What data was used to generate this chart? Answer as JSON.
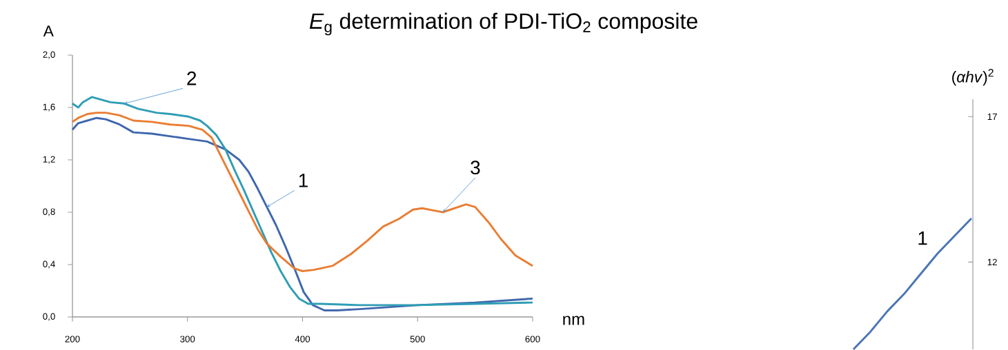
{
  "chart_data": [
    {
      "type": "line",
      "title": "*E*$_{g}$ determination of PDI-TiO$_{2}$ composite",
      "xlabel": "nm",
      "ylabel": "A",
      "xlim": [
        200,
        600
      ],
      "xticks": [
        200,
        300,
        400,
        500,
        600
      ],
      "ylim": [
        0,
        2
      ],
      "yticks": [
        {
          "value": 0,
          "label": "0,0"
        },
        {
          "value": 0.4,
          "label": "0,4"
        },
        {
          "value": 0.8,
          "label": "0,8"
        },
        {
          "value": 1.2,
          "label": "1,2"
        },
        {
          "value": 1.6,
          "label": "1,6"
        },
        {
          "value": 2.0,
          "label": "2,0"
        }
      ],
      "series": [
        {
          "name": "1",
          "color": "#3f67ad",
          "x": [
            200,
            205,
            213,
            221,
            229,
            241,
            253,
            269,
            285,
            301,
            317,
            325,
            333,
            345,
            353,
            361,
            369,
            377,
            385,
            393,
            401,
            409,
            419,
            430,
            450,
            500,
            550,
            600
          ],
          "values": [
            1.43,
            1.48,
            1.5,
            1.52,
            1.51,
            1.47,
            1.41,
            1.4,
            1.38,
            1.36,
            1.34,
            1.31,
            1.28,
            1.2,
            1.11,
            0.98,
            0.84,
            0.7,
            0.54,
            0.37,
            0.19,
            0.09,
            0.05,
            0.05,
            0.06,
            0.09,
            0.11,
            0.14
          ]
        },
        {
          "name": "2",
          "color": "#2f9db5",
          "x": [
            200,
            205,
            209,
            217,
            225,
            233,
            245,
            257,
            273,
            285,
            301,
            311,
            317,
            325,
            333,
            341,
            349,
            357,
            365,
            373,
            381,
            389,
            397,
            405,
            416,
            450,
            500,
            550,
            600
          ],
          "values": [
            1.63,
            1.6,
            1.64,
            1.68,
            1.66,
            1.64,
            1.63,
            1.59,
            1.56,
            1.55,
            1.53,
            1.5,
            1.46,
            1.39,
            1.28,
            1.12,
            0.97,
            0.81,
            0.65,
            0.49,
            0.35,
            0.23,
            0.14,
            0.1,
            0.1,
            0.09,
            0.09,
            0.1,
            0.11
          ]
        },
        {
          "name": "3",
          "color": "#ea7d32",
          "x": [
            200,
            205,
            213,
            221,
            229,
            241,
            253,
            269,
            285,
            301,
            313,
            321,
            329,
            337,
            345,
            353,
            361,
            369,
            381,
            393,
            400,
            410,
            426,
            442,
            456,
            470,
            484,
            496,
            504,
            516,
            522,
            532,
            542,
            550,
            562,
            572,
            585,
            600
          ],
          "values": [
            1.49,
            1.52,
            1.55,
            1.56,
            1.56,
            1.54,
            1.5,
            1.49,
            1.47,
            1.46,
            1.43,
            1.37,
            1.23,
            1.09,
            0.95,
            0.81,
            0.67,
            0.56,
            0.46,
            0.37,
            0.35,
            0.36,
            0.39,
            0.48,
            0.58,
            0.69,
            0.75,
            0.82,
            0.83,
            0.81,
            0.8,
            0.83,
            0.86,
            0.84,
            0.72,
            0.6,
            0.47,
            0.39
          ]
        }
      ]
    },
    {
      "type": "line",
      "ylabel": "(*αhv*)$^{2}$",
      "categories": [
        null,
        null,
        null,
        null,
        null,
        null,
        null,
        null
      ],
      "ylim": [
        9,
        17.6
      ],
      "yticks": [
        12,
        17
      ],
      "tick_labels": "y",
      "series": [
        {
          "name": "1",
          "color": "#4a75b5",
          "values": [
            9.0,
            9.6,
            10.3,
            10.9,
            11.6,
            12.3,
            12.9,
            13.5
          ]
        }
      ]
    }
  ]
}
